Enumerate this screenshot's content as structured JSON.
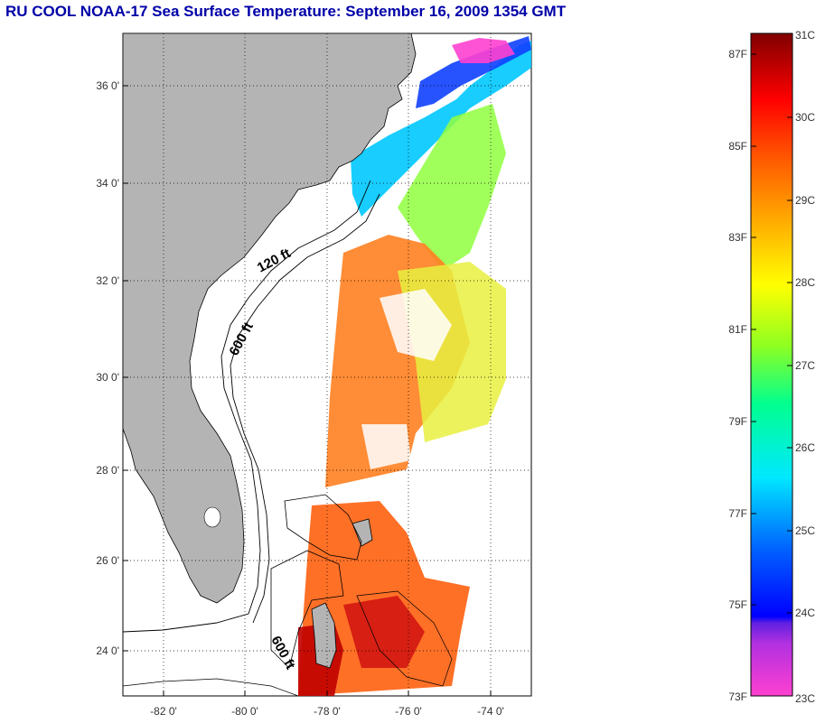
{
  "title": "RU COOL  NOAA-17  Sea Surface Temperature:  September 16, 2009 1354 GMT",
  "map": {
    "lon_range": [
      -83,
      -73
    ],
    "lat_range": [
      23,
      37
    ],
    "lat_ticks": [
      {
        "value": 36,
        "label": "36 0'"
      },
      {
        "value": 34,
        "label": "34 0'"
      },
      {
        "value": 32,
        "label": "32 0'"
      },
      {
        "value": 30,
        "label": "30 0'"
      },
      {
        "value": 28,
        "label": "28 0'"
      },
      {
        "value": 26,
        "label": "26 0'"
      },
      {
        "value": 24,
        "label": "24 0'"
      }
    ],
    "lon_ticks": [
      {
        "value": -82,
        "label": "-82 0'"
      },
      {
        "value": -80,
        "label": "-80 0'"
      },
      {
        "value": -78,
        "label": "-78 0'"
      },
      {
        "value": -76,
        "label": "-76 0'"
      },
      {
        "value": -74,
        "label": "-74 0'"
      }
    ],
    "land_color": "#b4b4b4",
    "grid": true,
    "depth_labels": [
      "120 ft",
      "600 ft",
      "600 ft"
    ]
  },
  "colorbar": {
    "fahrenheit_labels": [
      "87F",
      "85F",
      "83F",
      "81F",
      "79F",
      "77F",
      "75F",
      "73F"
    ],
    "celsius_labels": [
      "31C",
      "30C",
      "29C",
      "28C",
      "27C",
      "26C",
      "25C",
      "24C",
      "23C"
    ],
    "range_c": [
      23,
      31
    ],
    "colors": [
      "#ff40c0",
      "#a020f0",
      "#0000ff",
      "#0080ff",
      "#00e0ff",
      "#00ff80",
      "#c0ff00",
      "#ffff00",
      "#ffa000",
      "#ff5000",
      "#ff0000",
      "#c00000",
      "#800000"
    ]
  }
}
